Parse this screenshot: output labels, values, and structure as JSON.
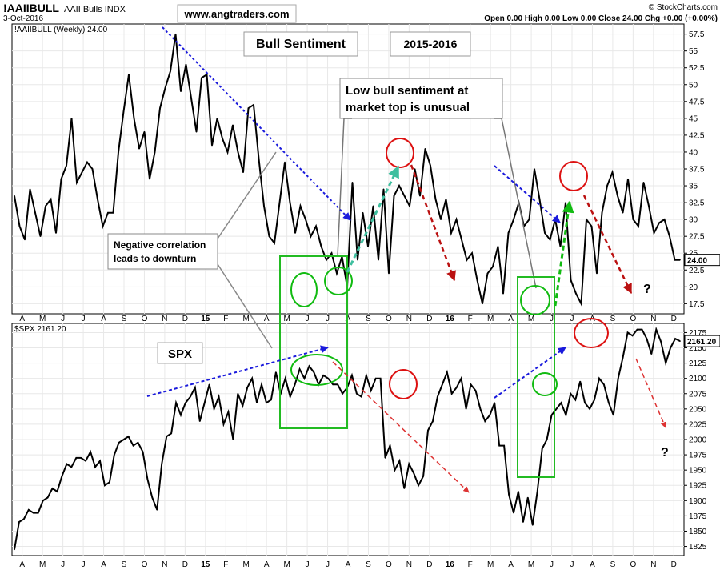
{
  "header": {
    "symbol": "!AAIIBULL",
    "name": "AAII Bulls INDX",
    "date": "3-Oct-2016",
    "ohlc": "Open 0.00  High 0.00  Low 0.00  Close 24.00  Chg +0.00 (+0.00%)",
    "provider": "© StockCharts.com",
    "website": "www.angtraders.com"
  },
  "colors": {
    "price_line": "#000000",
    "blue_annotation": "#1a1adc",
    "red_annotation": "#dd1111",
    "green_annotation": "#11bb11",
    "teal_annotation": "#3fbf9f",
    "dark_red_dashed": "#bb1111",
    "green_box": "#22bb22"
  },
  "annotations": {
    "bull_sentiment": "Bull Sentiment",
    "period": "2015-2016",
    "low_bull_line1": "Low bull sentiment at",
    "low_bull_line2": "market top is unusual",
    "neg_corr_line1": "Negative correlation",
    "neg_corr_line2": "leads to downturn",
    "spx_label": "SPX",
    "q1": "?",
    "q2": "?"
  },
  "chart_data": [
    {
      "type": "line",
      "title": "!AAIIBULL (Weekly) 24.00",
      "series": [
        {
          "name": "!AAIIBULL (Weekly)",
          "values": [
            33.5,
            29,
            27,
            34.5,
            31,
            27.5,
            32,
            33,
            28,
            36,
            38,
            45,
            35.5,
            37,
            38.5,
            37.5,
            33,
            29,
            31,
            31,
            40,
            46,
            51.5,
            45,
            40.5,
            43,
            36,
            40,
            46.5,
            49.5,
            52,
            57.5,
            49,
            53,
            48,
            43,
            51,
            51.5,
            41,
            45,
            42,
            40,
            44,
            40,
            37,
            46.5,
            47,
            39,
            32,
            27.5,
            26.5,
            32.5,
            38.5,
            32.5,
            28,
            32,
            30,
            27.5,
            29,
            26,
            24,
            25,
            22,
            24.5,
            20,
            35.5,
            24,
            31,
            26,
            32,
            24,
            34.5,
            22,
            33.5,
            35,
            33.5,
            32,
            37.5,
            33.5,
            40.5,
            38,
            33,
            30,
            33,
            28,
            30,
            27,
            24,
            25,
            21,
            17.5,
            22,
            23,
            26,
            19,
            28,
            30,
            32.5,
            29,
            30,
            37.5,
            33,
            28,
            27,
            30,
            26,
            32.5,
            21,
            19,
            17.5,
            30,
            29,
            22,
            31,
            35,
            37,
            33.5,
            31,
            36,
            30,
            29,
            35.5,
            32,
            28,
            29.5,
            30,
            27.5,
            24,
            24
          ]
        }
      ],
      "x_ticks": [
        "A",
        "M",
        "J",
        "J",
        "A",
        "S",
        "O",
        "N",
        "D",
        "15",
        "F",
        "M",
        "A",
        "M",
        "J",
        "J",
        "A",
        "S",
        "O",
        "N",
        "D",
        "16",
        "F",
        "M",
        "A",
        "M",
        "J",
        "J",
        "A",
        "S",
        "O",
        "N",
        "D"
      ],
      "y_ticks": [
        17.5,
        20,
        22.5,
        25,
        27.5,
        30,
        32.5,
        35,
        37.5,
        40,
        42.5,
        45,
        47.5,
        50,
        52.5,
        55,
        57.5
      ],
      "ylim": [
        16,
        59
      ],
      "last_label": "24.00",
      "grid": true
    },
    {
      "type": "line",
      "title": "$SPX 2161.20",
      "series": [
        {
          "name": "$SPX",
          "values": [
            1820,
            1865,
            1870,
            1885,
            1880,
            1880,
            1900,
            1905,
            1920,
            1915,
            1940,
            1960,
            1955,
            1970,
            1970,
            1965,
            1980,
            1955,
            1965,
            1925,
            1930,
            1975,
            1995,
            2000,
            2005,
            1990,
            1995,
            1980,
            1935,
            1905,
            1885,
            1960,
            2005,
            2010,
            2060,
            2040,
            2060,
            2070,
            2085,
            2030,
            2060,
            2090,
            2050,
            2070,
            2025,
            2045,
            2000,
            2075,
            2055,
            2085,
            2100,
            2060,
            2090,
            2060,
            2065,
            2110,
            2075,
            2100,
            2070,
            2090,
            2115,
            2100,
            2120,
            2110,
            2090,
            2105,
            2100,
            2090,
            2090,
            2075,
            2085,
            2105,
            2075,
            2070,
            2105,
            2080,
            2100,
            2100,
            1970,
            1990,
            1950,
            1965,
            1920,
            1960,
            1945,
            1925,
            1940,
            2015,
            2030,
            2070,
            2090,
            2110,
            2075,
            2085,
            2100,
            2050,
            2090,
            2080,
            2050,
            2030,
            2040,
            2060,
            1990,
            1990,
            1910,
            1880,
            1915,
            1865,
            1905,
            1860,
            1915,
            1985,
            2000,
            2040,
            2050,
            2060,
            2040,
            2075,
            2065,
            2095,
            2060,
            2050,
            2065,
            2100,
            2090,
            2060,
            2040,
            2100,
            2135,
            2175,
            2170,
            2180,
            2180,
            2165,
            2140,
            2180,
            2160,
            2125,
            2150,
            2165,
            2161
          ]
        }
      ],
      "x_ticks": [
        "A",
        "M",
        "J",
        "J",
        "A",
        "S",
        "O",
        "N",
        "D",
        "15",
        "F",
        "M",
        "A",
        "M",
        "J",
        "J",
        "A",
        "S",
        "O",
        "N",
        "D",
        "16",
        "F",
        "M",
        "A",
        "M",
        "J",
        "J",
        "A",
        "S",
        "O",
        "N",
        "D"
      ],
      "y_ticks": [
        1825,
        1850,
        1875,
        1900,
        1925,
        1950,
        1975,
        2000,
        2025,
        2050,
        2075,
        2100,
        2125,
        2150,
        2175
      ],
      "ylim": [
        1810,
        2190
      ],
      "last_label": "2161.20",
      "grid": true
    }
  ]
}
